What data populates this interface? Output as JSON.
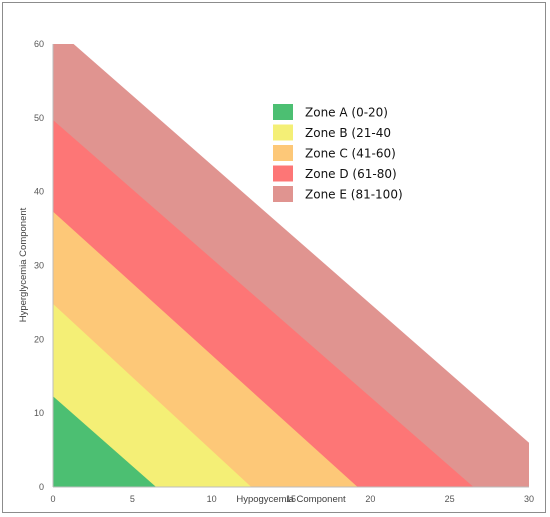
{
  "chart_data": {
    "type": "area",
    "title": "",
    "xlabel": "Hypogycemia Component",
    "ylabel": "Hyperglycemia Component",
    "xlim": [
      0,
      30
    ],
    "ylim": [
      0,
      60
    ],
    "x_ticks": [
      0,
      5,
      10,
      15,
      20,
      25,
      30
    ],
    "y_ticks": [
      0,
      10,
      20,
      30,
      40,
      50,
      60
    ],
    "grid": false,
    "legend_position": "top-right",
    "series": [
      {
        "name": "Zone A (0-20)",
        "color": "#4cbf72",
        "boundary": {
          "x_intercept": 6.5,
          "y_intercept": 12.3
        }
      },
      {
        "name": "Zone B (21-40",
        "color": "#f4ef76",
        "boundary": {
          "x_intercept": 12.5,
          "y_intercept": 24.8
        }
      },
      {
        "name": "Zone C (41-60)",
        "color": "#fdc878",
        "boundary": {
          "x_intercept": 19.2,
          "y_intercept": 37.3
        }
      },
      {
        "name": "Zone D (61-80)",
        "color": "#fd7676",
        "boundary": {
          "x_intercept": 26.5,
          "y_intercept": 49.7
        }
      },
      {
        "name": "Zone E (81-100)",
        "color": "#e09490",
        "boundary": {
          "x_intercept": 30,
          "y_intercept": 60,
          "x_at_y_max": 1.3,
          "y_at_x_max": 6.0
        }
      }
    ]
  }
}
